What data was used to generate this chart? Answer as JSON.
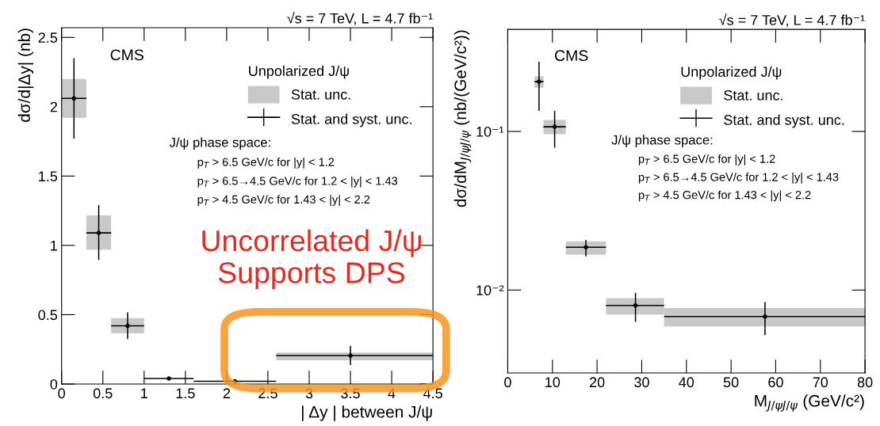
{
  "chart_data": [
    {
      "type": "scatter",
      "title": "√s = 7 TeV, L = 4.7 fb⁻¹",
      "xlabel": "| Δy | between J/ψ",
      "ylabel": "dσ/d|Δy| (nb)",
      "legend": "top right",
      "legend_title": "Unpolarized J/ψ",
      "xlim": [
        0,
        4.5
      ],
      "ylim": [
        0,
        2.57
      ],
      "xticks": [
        0,
        0.5,
        1,
        1.5,
        2,
        2.5,
        3,
        3.5,
        4,
        4.5
      ],
      "yticks": [
        0,
        0.5,
        1,
        1.5,
        2,
        2.5
      ],
      "annotations": [
        "CMS",
        "J/ψ phase space:",
        "p$_{T}$ > 6.5 GeV/c for |y| < 1.2",
        "p$_{T}$ > 6.5→4.5 GeV/c for 1.2 < |y| < 1.43",
        "p$_{T}$ > 4.5 GeV/c for 1.43 < |y| < 2.2",
        "Uncorrelated J/ψ\nSupports DPS"
      ],
      "series": [
        {
          "name": "Stat. unc.",
          "type": "bar",
          "color": "#c8c8c8",
          "x": [
            0.15,
            0.45,
            0.8,
            1.3,
            2.1,
            3.55
          ],
          "base": [
            1.92,
            0.97,
            0.366,
            null,
            null,
            0.172
          ],
          "values": [
            0.28,
            0.246,
            0.11,
            null,
            null,
            0.055
          ]
        },
        {
          "name": "Stat. and syst. unc.",
          "marker": "circle",
          "color": "#000000",
          "x": [
            0.15,
            0.45,
            0.8,
            1.3,
            2.1,
            3.5
          ],
          "values": [
            2.06,
            1.09,
            0.42,
            0.04,
            0.02,
            0.205
          ],
          "errors": [
            [
              1.77,
              2.35
            ],
            [
              0.895,
              1.29
            ],
            [
              0.325,
              0.517
            ],
            [
              0.035,
              0.045
            ],
            [
              0.015,
              0.025
            ],
            [
              0.137,
              0.275
            ]
          ],
          "xerrors": [
            [
              0,
              0.3
            ],
            [
              0.3,
              0.6
            ],
            [
              0.6,
              1.0
            ],
            [
              1.0,
              1.6
            ],
            [
              1.6,
              2.6
            ],
            [
              2.6,
              4.5
            ]
          ]
        }
      ]
    },
    {
      "type": "scatter",
      "title": "√s = 7 TeV, L = 4.7 fb⁻¹",
      "xlabel": "M$_{J/ψJ/ψ}$ (GeV/c²)",
      "ylabel": "dσ/dM$_{J/ψJ/ψ}$ (nb/(GeV/c²))",
      "legend": "top right",
      "legend_title": "Unpolarized J/ψ",
      "log": "y",
      "xlim": [
        0,
        80
      ],
      "ylim": [
        0.003,
        0.44
      ],
      "xticks": [
        0,
        10,
        20,
        30,
        40,
        50,
        60,
        70,
        80
      ],
      "yticks": [
        {
          "value": 0.01,
          "label": "10⁻²"
        },
        {
          "value": 0.1,
          "label": "10⁻¹"
        }
      ],
      "annotations": [
        "CMS",
        "J/ψ phase space:",
        "p$_{T}$ > 6.5 GeV/c for |y| < 1.2",
        "p$_{T}$ > 6.5→4.5 GeV/c for 1.2 < |y| < 1.43",
        "p$_{T}$ > 4.5 GeV/c for 1.43 < |y| < 2.2"
      ],
      "series": [
        {
          "name": "Stat. unc.",
          "type": "bar",
          "color": "#c8c8c8",
          "x": [
            7.0,
            10.5,
            17.5,
            28.5,
            57.5
          ],
          "base": [
            0.189,
            0.096,
            0.0167,
            0.007,
            0.0059
          ],
          "values": [
            0.034,
            0.022,
            0.0036,
            0.0019,
            0.0018
          ]
        },
        {
          "name": "Stat. and syst. unc.",
          "marker": "circle",
          "color": "#000000",
          "x": [
            7.0,
            10.5,
            17.5,
            28.6,
            57.6
          ],
          "values": [
            0.206,
            0.107,
            0.0186,
            0.008,
            0.0068
          ],
          "errors": [
            [
              0.135,
              0.275
            ],
            [
              0.079,
              0.135
            ],
            [
              0.0163,
              0.0207
            ],
            [
              0.0063,
              0.0096
            ],
            [
              0.0052,
              0.0084
            ]
          ],
          "xerrors": [
            [
              6,
              8
            ],
            [
              8,
              13
            ],
            [
              13,
              22
            ],
            [
              22,
              35
            ],
            [
              35,
              80
            ]
          ]
        }
      ]
    }
  ]
}
